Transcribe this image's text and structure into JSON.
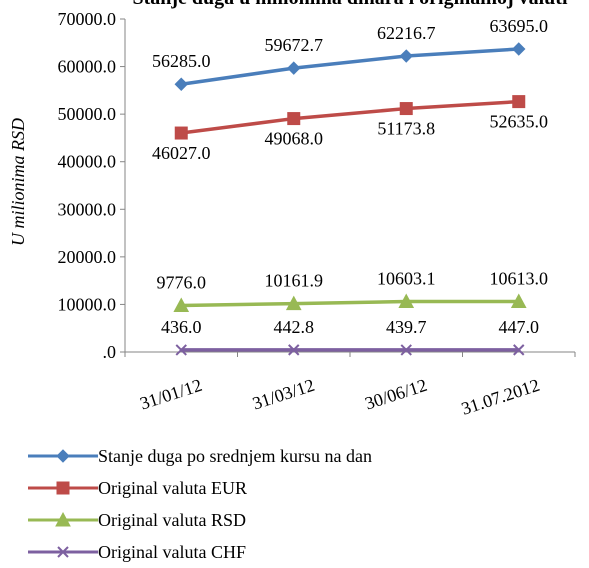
{
  "chart_data": {
    "type": "line",
    "title": "Stanje duga u milionima dinara i originalnoj valuti",
    "ylabel": "U milionima RSD",
    "xlabel": "",
    "categories": [
      "31/01/12",
      "31/03/12",
      "30/06/12",
      "31.07.2012"
    ],
    "ylim": [
      0,
      70000
    ],
    "yticks": [
      ".0",
      "10000.0",
      "20000.0",
      "30000.0",
      "40000.0",
      "50000.0",
      "60000.0",
      "70000.0"
    ],
    "grid": false,
    "legend_position": "bottom",
    "series": [
      {
        "name": "Stanje duga po srednjem kursu na dan",
        "values": [
          56285.0,
          59672.7,
          62216.7,
          63695.0
        ],
        "labels": [
          "56285.0",
          "59672.7",
          "62216.7",
          "63695.0"
        ],
        "color": "#4a7ebb",
        "marker": "diamond",
        "label_position": "above"
      },
      {
        "name": "Original valuta EUR",
        "values": [
          46027.0,
          49068.0,
          51173.8,
          52635.0
        ],
        "labels": [
          "46027.0",
          "49068.0",
          "51173.8",
          "52635.0"
        ],
        "color": "#be4b48",
        "marker": "square",
        "label_position": "below"
      },
      {
        "name": "Original valuta RSD",
        "values": [
          9776.0,
          10161.9,
          10603.1,
          10613.0
        ],
        "labels": [
          "9776.0",
          "10161.9",
          "10603.1",
          "10613.0"
        ],
        "color": "#98b954",
        "marker": "triangle",
        "label_position": "above"
      },
      {
        "name": "Original valuta CHF",
        "values": [
          436.0,
          442.8,
          439.7,
          447.0
        ],
        "labels": [
          "436.0",
          "442.8",
          "439.7",
          "447.0"
        ],
        "color": "#7d60a0",
        "marker": "x",
        "label_position": "above"
      }
    ]
  }
}
